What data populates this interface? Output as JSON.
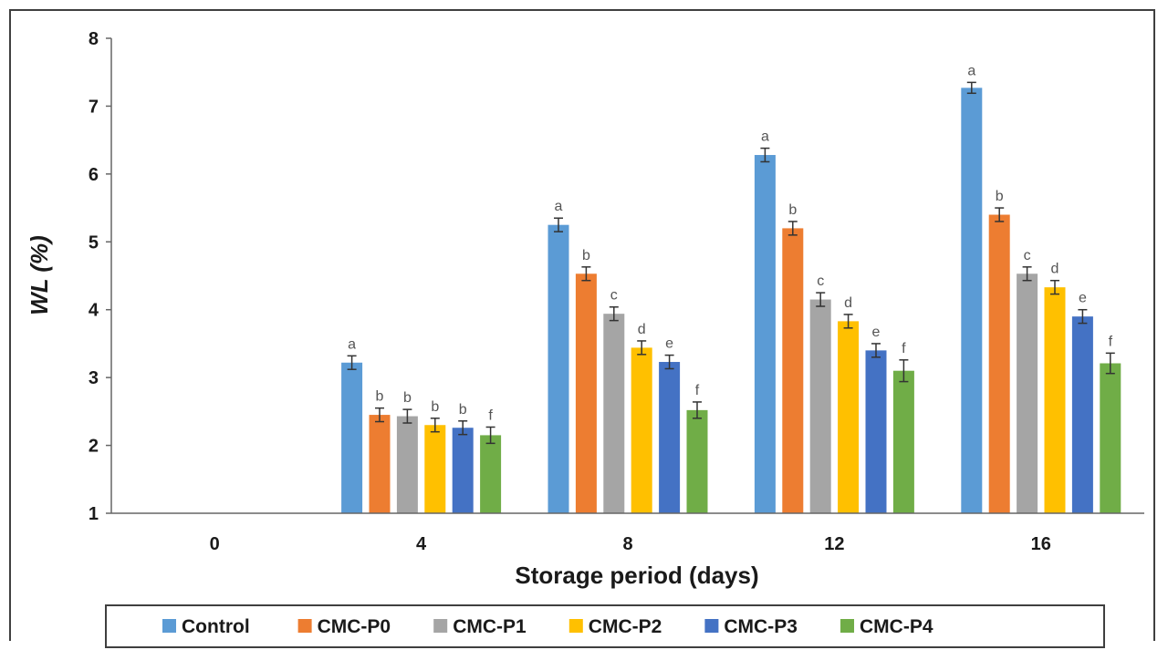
{
  "chart_data": {
    "type": "bar",
    "xlabel": "Storage period (days)",
    "ylabel": "WL (%)",
    "ylim": [
      1,
      8
    ],
    "yticks": [
      "1",
      "2",
      "3",
      "4",
      "5",
      "6",
      "7",
      "8"
    ],
    "categories": [
      "0",
      "4",
      "8",
      "12",
      "16"
    ],
    "legend_position": "bottom",
    "grid": false,
    "series": [
      {
        "name": "Control",
        "color": "#5B9BD5",
        "values": [
          null,
          3.22,
          5.25,
          6.28,
          7.27
        ],
        "errors": [
          null,
          0.1,
          0.1,
          0.1,
          0.08
        ],
        "labels": [
          "",
          "a",
          "a",
          "a",
          "a"
        ]
      },
      {
        "name": "CMC-P0",
        "color": "#ED7D31",
        "values": [
          null,
          2.45,
          4.53,
          5.2,
          5.4
        ],
        "errors": [
          null,
          0.1,
          0.1,
          0.1,
          0.1
        ],
        "labels": [
          "",
          "b",
          "b",
          "b",
          "b"
        ]
      },
      {
        "name": "CMC-P1",
        "color": "#A5A5A5",
        "values": [
          null,
          2.43,
          3.94,
          4.15,
          4.53
        ],
        "errors": [
          null,
          0.1,
          0.1,
          0.1,
          0.1
        ],
        "labels": [
          "",
          "b",
          "c",
          "c",
          "c"
        ]
      },
      {
        "name": "CMC-P2",
        "color": "#FFC000",
        "values": [
          null,
          2.3,
          3.44,
          3.83,
          4.33
        ],
        "errors": [
          null,
          0.1,
          0.1,
          0.1,
          0.1
        ],
        "labels": [
          "",
          "b",
          "d",
          "d",
          "d"
        ]
      },
      {
        "name": "CMC-P3",
        "color": "#4472C4",
        "values": [
          null,
          2.26,
          3.23,
          3.4,
          3.9
        ],
        "errors": [
          null,
          0.1,
          0.1,
          0.1,
          0.1
        ],
        "labels": [
          "",
          "b",
          "e",
          "e",
          "e"
        ]
      },
      {
        "name": "CMC-P4",
        "color": "#70AD47",
        "values": [
          null,
          2.15,
          2.52,
          3.1,
          3.21
        ],
        "errors": [
          null,
          0.12,
          0.12,
          0.16,
          0.15
        ],
        "labels": [
          "",
          "f",
          "f",
          "f",
          "f"
        ]
      }
    ]
  }
}
